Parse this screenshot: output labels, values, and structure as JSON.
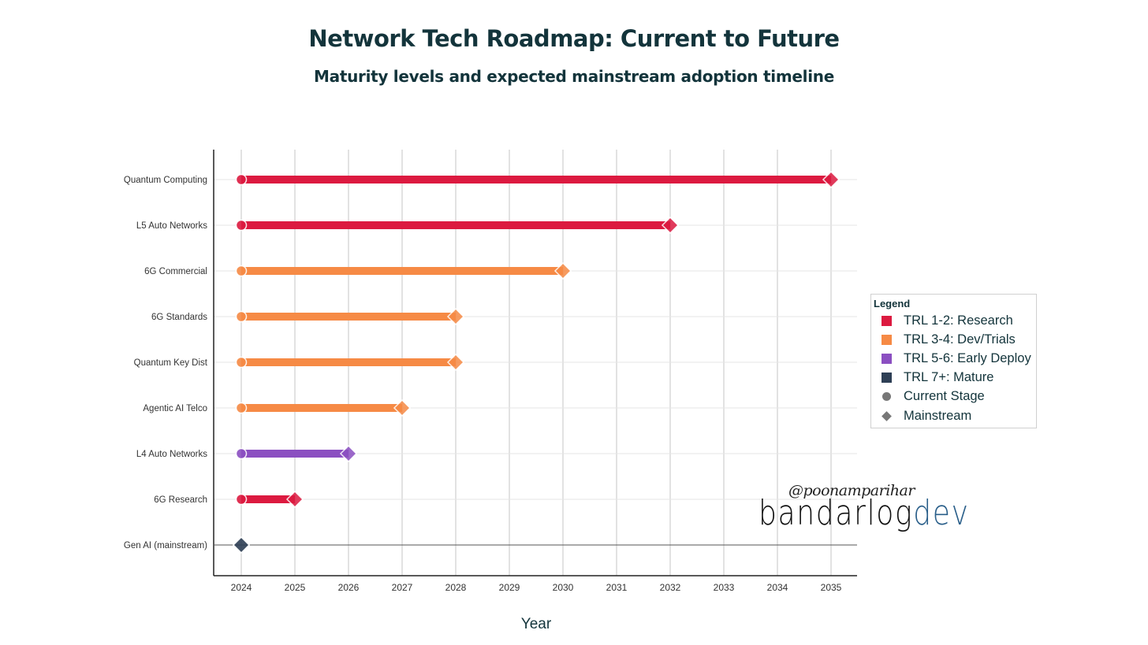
{
  "chart_data": {
    "type": "timeline",
    "title": "Network Tech Roadmap: Current to Future",
    "subtitle": "Maturity levels and expected mainstream adoption timeline",
    "xlabel": "Year",
    "ylabel": "",
    "xlim": [
      2023.5,
      2035.5
    ],
    "x_ticks": [
      2024,
      2025,
      2026,
      2027,
      2028,
      2029,
      2030,
      2031,
      2032,
      2033,
      2034,
      2035
    ],
    "grid": true,
    "legend_position": "right",
    "colors": {
      "research": "#dc1a40",
      "dev": "#f68a45",
      "early": "#8b4fc1",
      "mature": "#2e3f55"
    },
    "items": [
      {
        "name": "Quantum Computing",
        "start": 2024,
        "mainstream": 2035,
        "maturity": "research"
      },
      {
        "name": "L5 Auto Networks",
        "start": 2024,
        "mainstream": 2032,
        "maturity": "research"
      },
      {
        "name": "6G Commercial",
        "start": 2024,
        "mainstream": 2030,
        "maturity": "dev"
      },
      {
        "name": "6G Standards",
        "start": 2024,
        "mainstream": 2028,
        "maturity": "dev"
      },
      {
        "name": "Quantum Key Dist",
        "start": 2024,
        "mainstream": 2028,
        "maturity": "dev"
      },
      {
        "name": "Agentic AI Telco",
        "start": 2024,
        "mainstream": 2027,
        "maturity": "dev"
      },
      {
        "name": "L4 Auto Networks",
        "start": 2024,
        "mainstream": 2026,
        "maturity": "early"
      },
      {
        "name": "6G Research",
        "start": 2024,
        "mainstream": 2025,
        "maturity": "research"
      },
      {
        "name": "Gen AI (mainstream)",
        "start": 2024,
        "mainstream": 2024,
        "maturity": "mature"
      }
    ],
    "legend": {
      "title": "Legend",
      "entries": [
        {
          "label": "TRL 1-2: Research",
          "kind": "square",
          "color": "#dc1a40"
        },
        {
          "label": "TRL 3-4: Dev/Trials",
          "kind": "square",
          "color": "#f68a45"
        },
        {
          "label": "TRL 5-6: Early Deploy",
          "kind": "square",
          "color": "#8b4fc1"
        },
        {
          "label": "TRL 7+: Mature",
          "kind": "square",
          "color": "#2e3f55"
        },
        {
          "label": "Current Stage",
          "kind": "circle",
          "color": "#777777"
        },
        {
          "label": "Mainstream",
          "kind": "diamond",
          "color": "#777777"
        }
      ]
    }
  },
  "watermark": {
    "handle": "@poonamparihar",
    "brand": "bandarlog",
    "brand_suffix": "dev"
  }
}
